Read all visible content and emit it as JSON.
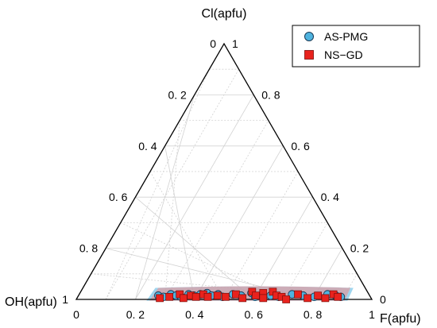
{
  "chart_data": {
    "type": "ternary-scatter",
    "vertices": {
      "top": "Cl(apfu)",
      "left": "OH(apfu)",
      "right": "F(apfu)"
    },
    "axis_range": [
      0,
      1
    ],
    "ticks": {
      "left_edge": [
        "0",
        "0. 2",
        "0. 4",
        "0. 6",
        "0. 8",
        "1"
      ],
      "right_edge": [
        "1",
        "0. 8",
        "0. 6",
        "0. 4",
        "0. 2",
        "0"
      ],
      "bottom_edge": [
        "0",
        "0. 2",
        "0. 4",
        "0. 6",
        "0. 8",
        "1"
      ]
    },
    "grid": true,
    "legend_position": "top-right",
    "series": [
      {
        "name": "AS-PMG",
        "marker": "circle",
        "color": "#4fb3df",
        "region_color": "#7fc8ea",
        "points": [
          {
            "F": 0.27,
            "Cl": 0.015
          },
          {
            "F": 0.29,
            "Cl": 0.01
          },
          {
            "F": 0.31,
            "Cl": 0.02
          },
          {
            "F": 0.33,
            "Cl": 0.015
          },
          {
            "F": 0.35,
            "Cl": 0.01
          },
          {
            "F": 0.37,
            "Cl": 0.02
          },
          {
            "F": 0.39,
            "Cl": 0.015
          },
          {
            "F": 0.41,
            "Cl": 0.02
          },
          {
            "F": 0.43,
            "Cl": 0.025
          },
          {
            "F": 0.45,
            "Cl": 0.015
          },
          {
            "F": 0.47,
            "Cl": 0.02
          },
          {
            "F": 0.49,
            "Cl": 0.01
          },
          {
            "F": 0.52,
            "Cl": 0.02
          },
          {
            "F": 0.55,
            "Cl": 0.015
          },
          {
            "F": 0.58,
            "Cl": 0.025
          },
          {
            "F": 0.6,
            "Cl": 0.01
          },
          {
            "F": 0.62,
            "Cl": 0.02
          },
          {
            "F": 0.65,
            "Cl": 0.015
          },
          {
            "F": 0.68,
            "Cl": 0.01
          },
          {
            "F": 0.72,
            "Cl": 0.02
          },
          {
            "F": 0.76,
            "Cl": 0.015
          },
          {
            "F": 0.8,
            "Cl": 0.01
          },
          {
            "F": 0.84,
            "Cl": 0.02
          },
          {
            "F": 0.87,
            "Cl": 0.015
          },
          {
            "F": 0.89,
            "Cl": 0.01
          }
        ]
      },
      {
        "name": "NS−GD",
        "marker": "square",
        "color": "#e8221d",
        "region_color": "#f08a88",
        "points": [
          {
            "F": 0.28,
            "Cl": 0.005
          },
          {
            "F": 0.31,
            "Cl": 0.01
          },
          {
            "F": 0.34,
            "Cl": 0.02
          },
          {
            "F": 0.36,
            "Cl": 0.005
          },
          {
            "F": 0.38,
            "Cl": 0.015
          },
          {
            "F": 0.4,
            "Cl": 0.01
          },
          {
            "F": 0.42,
            "Cl": 0.02
          },
          {
            "F": 0.44,
            "Cl": 0.01
          },
          {
            "F": 0.47,
            "Cl": 0.015
          },
          {
            "F": 0.5,
            "Cl": 0.01
          },
          {
            "F": 0.53,
            "Cl": 0.02
          },
          {
            "F": 0.56,
            "Cl": 0.005
          },
          {
            "F": 0.58,
            "Cl": 0.03
          },
          {
            "F": 0.6,
            "Cl": 0.015
          },
          {
            "F": 0.62,
            "Cl": 0.025
          },
          {
            "F": 0.63,
            "Cl": 0.005
          },
          {
            "F": 0.65,
            "Cl": 0.03
          },
          {
            "F": 0.67,
            "Cl": 0.015
          },
          {
            "F": 0.69,
            "Cl": 0.01
          },
          {
            "F": 0.71,
            "Cl": 0.0
          },
          {
            "F": 0.74,
            "Cl": 0.02
          },
          {
            "F": 0.78,
            "Cl": 0.005
          },
          {
            "F": 0.81,
            "Cl": 0.015
          },
          {
            "F": 0.84,
            "Cl": 0.005
          },
          {
            "F": 0.86,
            "Cl": 0.02
          },
          {
            "F": 0.88,
            "Cl": 0.01
          }
        ]
      }
    ]
  }
}
